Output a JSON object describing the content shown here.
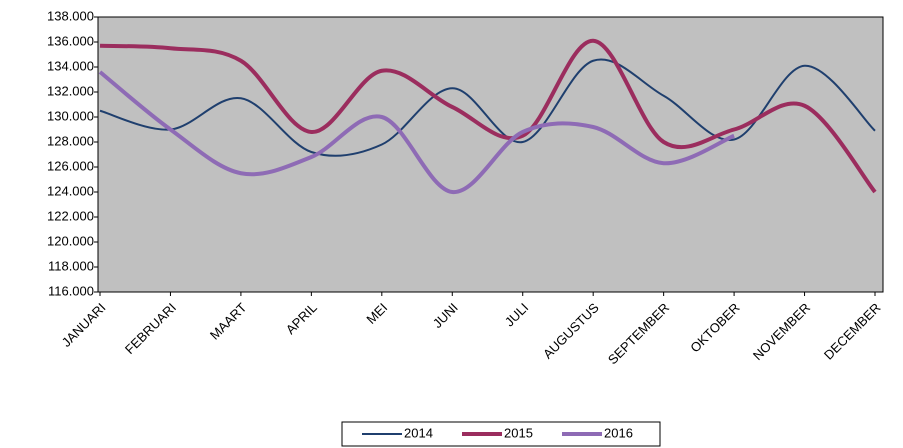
{
  "chart_data": {
    "type": "line",
    "categories": [
      "JANUARI",
      "FEBRUARI",
      "MAART",
      "APRIL",
      "MEI",
      "JUNI",
      "JULI",
      "AUGUSTUS",
      "SEPTEMBER",
      "OKTOBER",
      "NOVEMBER",
      "DECEMBER"
    ],
    "series": [
      {
        "name": "2014",
        "color": "#1f3f6e",
        "values": [
          130500,
          129000,
          131500,
          127200,
          127800,
          132300,
          128000,
          134500,
          131700,
          128200,
          134100,
          128900
        ]
      },
      {
        "name": "2015",
        "color": "#9b2d5e",
        "values": [
          135700,
          135500,
          134500,
          128800,
          133700,
          130800,
          128500,
          136100,
          128000,
          129000,
          130900,
          124000
        ]
      },
      {
        "name": "2016",
        "color": "#8e6bb5",
        "values": [
          133600,
          129000,
          125500,
          126800,
          130000,
          124000,
          128800,
          129200,
          126300,
          128500,
          null,
          null
        ]
      }
    ],
    "ylim": [
      116000,
      138000
    ],
    "yticks": [
      {
        "value": 116000,
        "label": "116.000"
      },
      {
        "value": 118000,
        "label": "118.000"
      },
      {
        "value": 120000,
        "label": "120.000"
      },
      {
        "value": 122000,
        "label": "122.000"
      },
      {
        "value": 124000,
        "label": "124.000"
      },
      {
        "value": 126000,
        "label": "126.000"
      },
      {
        "value": 128000,
        "label": "128.000"
      },
      {
        "value": 130000,
        "label": "130.000"
      },
      {
        "value": 132000,
        "label": "132.000"
      },
      {
        "value": 134000,
        "label": "134.000"
      },
      {
        "value": 136000,
        "label": "136.000"
      },
      {
        "value": 138000,
        "label": "138.000"
      }
    ],
    "grid": false,
    "smooth": true,
    "legend": "bottom"
  }
}
